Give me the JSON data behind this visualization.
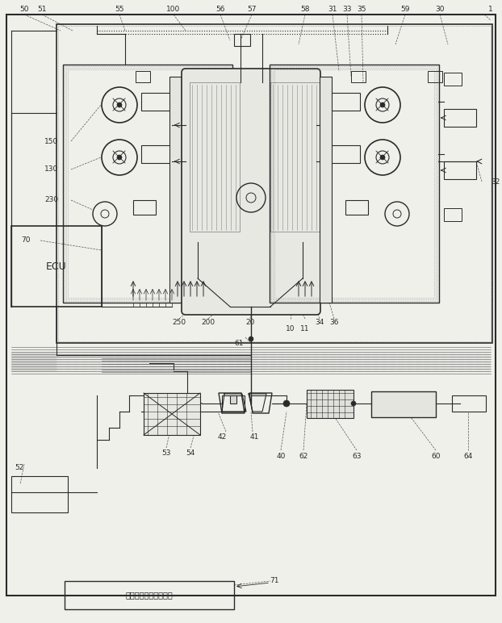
{
  "bg_color": "#f0f0eb",
  "line_color": "#2a2a2a",
  "fig_width": 6.22,
  "fig_height": 7.72,
  "dpi": 100,
  "sensor_text": "アクセルペダルセンサ"
}
